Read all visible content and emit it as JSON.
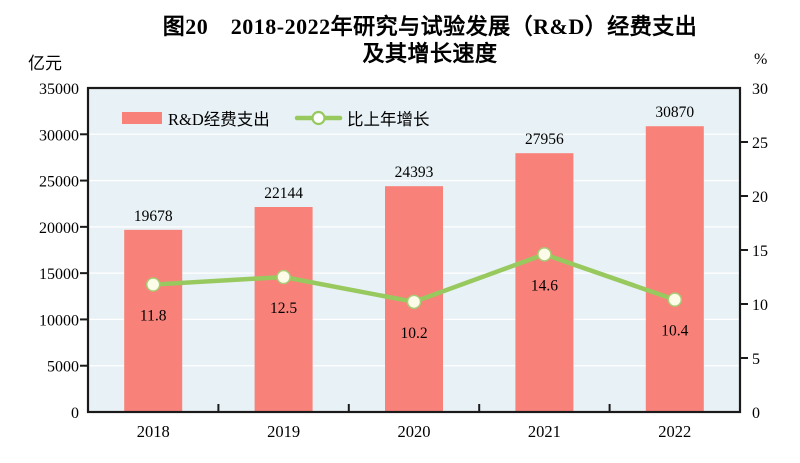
{
  "title": {
    "line1": "图20　2018-2022年研究与试验发展（R&D）经费支出",
    "line2": "及其增长速度"
  },
  "left_axis_unit": "亿元",
  "right_axis_unit": "%",
  "chart_data": {
    "type": "bar+line combo",
    "categories": [
      "2018",
      "2019",
      "2020",
      "2021",
      "2022"
    ],
    "series": [
      {
        "name": "R&D经费支出",
        "type": "bar",
        "axis": "left",
        "values": [
          19678,
          22144,
          24393,
          27956,
          30870
        ],
        "color": "#F8817A"
      },
      {
        "name": "比上年增长",
        "type": "line",
        "axis": "right",
        "values": [
          11.8,
          12.5,
          10.2,
          14.6,
          10.4
        ],
        "color": "#97C95E",
        "marker_fill": "#FCFCE9",
        "marker_stroke": "#A8CC74"
      }
    ],
    "left_axis": {
      "min": 0,
      "max": 35000,
      "step": 5000,
      "unit": "亿元"
    },
    "right_axis": {
      "min": 0,
      "max": 30,
      "step": 5,
      "unit": "%"
    },
    "legend_position": "top-left-inside",
    "grid": true,
    "plot_bg": "#E8F1F5",
    "gridline_color": "#FFFFFF",
    "frame_color": "#1A1A1A"
  }
}
